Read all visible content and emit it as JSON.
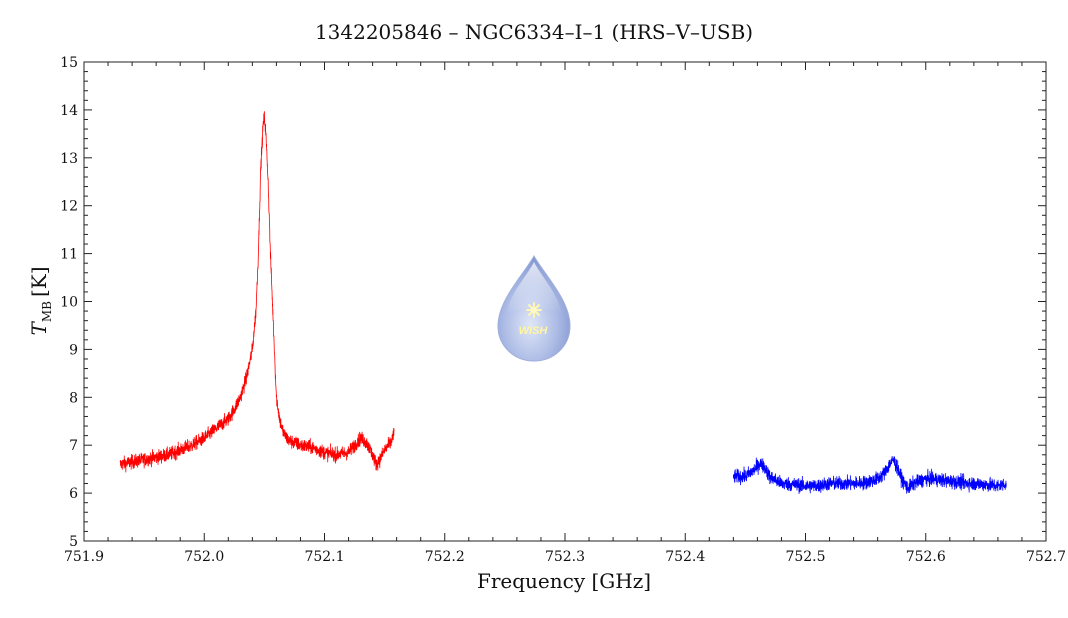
{
  "chart_data": {
    "type": "line",
    "title": "1342205846 – NGC6334–I–1 (HRS–V–USB)",
    "xlabel": "Frequency [GHz]",
    "ylabel": "T",
    "ylabel_subscript": "MB",
    "ylabel_unit": "[K]",
    "xlim": [
      751.9,
      752.7
    ],
    "ylim": [
      5,
      15
    ],
    "xticks": [
      "751.9",
      "752.0",
      "752.1",
      "752.2",
      "752.3",
      "752.4",
      "752.5",
      "752.6",
      "752.7"
    ],
    "yticks": [
      "5",
      "6",
      "7",
      "8",
      "9",
      "10",
      "11",
      "12",
      "13",
      "14",
      "15"
    ],
    "grid": false,
    "legend": "none",
    "logo_text": "WISH",
    "series": [
      {
        "color": "#ff0000",
        "x": [
          751.93,
          751.94,
          751.95,
          751.96,
          751.97,
          751.98,
          751.99,
          752.0,
          752.01,
          752.02,
          752.025,
          752.03,
          752.035,
          752.04,
          752.043,
          752.045,
          752.047,
          752.049,
          752.05,
          752.051,
          752.053,
          752.055,
          752.058,
          752.06,
          752.063,
          752.066,
          752.07,
          752.08,
          752.09,
          752.1,
          752.11,
          752.12,
          752.125,
          752.13,
          752.135,
          752.14,
          752.143,
          752.146,
          752.15,
          752.155,
          752.158
        ],
        "y": [
          6.6,
          6.65,
          6.7,
          6.75,
          6.8,
          6.9,
          7.0,
          7.15,
          7.35,
          7.55,
          7.75,
          8.0,
          8.4,
          9.0,
          9.8,
          11.0,
          12.8,
          13.7,
          13.85,
          13.6,
          12.6,
          11.0,
          9.2,
          8.0,
          7.5,
          7.25,
          7.1,
          7.0,
          6.95,
          6.85,
          6.8,
          6.85,
          7.0,
          7.15,
          7.05,
          6.8,
          6.6,
          6.7,
          6.9,
          7.05,
          7.25
        ],
        "noise": 0.14
      },
      {
        "color": "#0000ff",
        "x": [
          752.44,
          752.45,
          752.458,
          752.462,
          752.466,
          752.47,
          752.48,
          752.49,
          752.5,
          752.51,
          752.52,
          752.53,
          752.54,
          752.55,
          752.56,
          752.565,
          752.57,
          752.573,
          752.576,
          752.58,
          752.585,
          752.59,
          752.6,
          752.61,
          752.62,
          752.63,
          752.64,
          752.65,
          752.66,
          752.667
        ],
        "y": [
          6.35,
          6.35,
          6.5,
          6.62,
          6.55,
          6.35,
          6.2,
          6.18,
          6.15,
          6.15,
          6.2,
          6.2,
          6.2,
          6.22,
          6.3,
          6.4,
          6.6,
          6.7,
          6.55,
          6.3,
          6.1,
          6.2,
          6.3,
          6.28,
          6.25,
          6.22,
          6.2,
          6.18,
          6.15,
          6.2
        ],
        "noise": 0.14
      }
    ]
  }
}
